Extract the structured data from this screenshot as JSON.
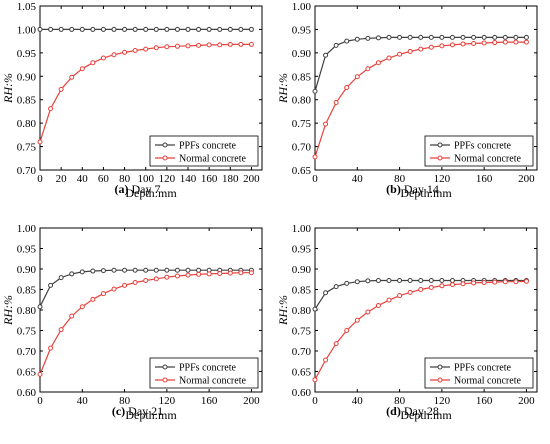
{
  "chart_data": [
    {
      "type": "line",
      "panel_tag": "(a)",
      "caption": "Day 7",
      "xlabel": "Depth:mm",
      "ylabel": "RH:%",
      "xlim": [
        0,
        210
      ],
      "ylim": [
        0.7,
        1.05
      ],
      "xticks": [
        0,
        20,
        40,
        60,
        80,
        100,
        120,
        140,
        160,
        180,
        200
      ],
      "yticks": [
        0.7,
        0.75,
        0.8,
        0.85,
        0.9,
        0.95,
        1.0,
        1.05
      ],
      "x": [
        0,
        10,
        20,
        30,
        40,
        50,
        60,
        70,
        80,
        90,
        100,
        110,
        120,
        130,
        140,
        150,
        160,
        170,
        180,
        190,
        200
      ],
      "series": [
        {
          "name": "PPFs concrete",
          "color": "#404040",
          "values": [
            1.0,
            1.0,
            1.0,
            1.0,
            1.0,
            1.0,
            1.0,
            1.0,
            1.0,
            1.0,
            1.0,
            1.0,
            1.0,
            1.0,
            1.0,
            1.0,
            1.0,
            1.0,
            1.0,
            1.0,
            1.0
          ]
        },
        {
          "name": "Normal concrete",
          "color": "#e8413c",
          "values": [
            0.76,
            0.831,
            0.872,
            0.898,
            0.916,
            0.929,
            0.939,
            0.946,
            0.951,
            0.955,
            0.958,
            0.961,
            0.963,
            0.964,
            0.965,
            0.966,
            0.967,
            0.967,
            0.968,
            0.968,
            0.968
          ]
        }
      ],
      "legend": "bottom-right"
    },
    {
      "type": "line",
      "panel_tag": "(b)",
      "caption": "Day 14",
      "xlabel": "Depth:mm",
      "ylabel": "RH:%",
      "xlim": [
        0,
        210
      ],
      "ylim": [
        0.65,
        1.0
      ],
      "xticks": [
        0,
        40,
        80,
        120,
        160,
        200
      ],
      "yticks": [
        0.65,
        0.7,
        0.75,
        0.8,
        0.85,
        0.9,
        0.95,
        1.0
      ],
      "x": [
        0,
        10,
        20,
        30,
        40,
        50,
        60,
        70,
        80,
        90,
        100,
        110,
        120,
        130,
        140,
        150,
        160,
        170,
        180,
        190,
        200
      ],
      "series": [
        {
          "name": "PPFs concrete",
          "color": "#404040",
          "values": [
            0.818,
            0.895,
            0.916,
            0.925,
            0.929,
            0.931,
            0.932,
            0.933,
            0.933,
            0.933,
            0.933,
            0.933,
            0.933,
            0.933,
            0.933,
            0.933,
            0.933,
            0.933,
            0.933,
            0.933,
            0.933
          ]
        },
        {
          "name": "Normal concrete",
          "color": "#e8413c",
          "values": [
            0.678,
            0.748,
            0.794,
            0.826,
            0.849,
            0.866,
            0.879,
            0.889,
            0.897,
            0.903,
            0.908,
            0.912,
            0.915,
            0.917,
            0.919,
            0.92,
            0.921,
            0.922,
            0.923,
            0.923,
            0.923
          ]
        }
      ],
      "legend": "bottom-right"
    },
    {
      "type": "line",
      "panel_tag": "(c)",
      "caption": "Day 21",
      "xlabel": "Depth:mm",
      "ylabel": "RH:%",
      "xlim": [
        0,
        210
      ],
      "ylim": [
        0.6,
        1.0
      ],
      "xticks": [
        0,
        40,
        80,
        120,
        160,
        200
      ],
      "yticks": [
        0.6,
        0.65,
        0.7,
        0.75,
        0.8,
        0.85,
        0.9,
        0.95,
        1.0
      ],
      "x": [
        0,
        10,
        20,
        30,
        40,
        50,
        60,
        70,
        80,
        90,
        100,
        110,
        120,
        130,
        140,
        150,
        160,
        170,
        180,
        190,
        200
      ],
      "series": [
        {
          "name": "PPFs concrete",
          "color": "#404040",
          "values": [
            0.808,
            0.86,
            0.879,
            0.888,
            0.893,
            0.895,
            0.896,
            0.897,
            0.897,
            0.897,
            0.897,
            0.897,
            0.897,
            0.897,
            0.897,
            0.897,
            0.897,
            0.897,
            0.897,
            0.897,
            0.897
          ]
        },
        {
          "name": "Normal concrete",
          "color": "#e8413c",
          "values": [
            0.643,
            0.707,
            0.752,
            0.785,
            0.808,
            0.826,
            0.84,
            0.851,
            0.86,
            0.867,
            0.872,
            0.876,
            0.88,
            0.883,
            0.885,
            0.887,
            0.888,
            0.889,
            0.89,
            0.891,
            0.891
          ]
        }
      ],
      "legend": "bottom-right"
    },
    {
      "type": "line",
      "panel_tag": "(d)",
      "caption": "Day 28",
      "xlabel": "Depth:mm",
      "ylabel": "RH:%",
      "xlim": [
        0,
        210
      ],
      "ylim": [
        0.6,
        1.0
      ],
      "xticks": [
        0,
        40,
        80,
        120,
        160,
        200
      ],
      "yticks": [
        0.6,
        0.65,
        0.7,
        0.75,
        0.8,
        0.85,
        0.9,
        0.95,
        1.0
      ],
      "x": [
        0,
        10,
        20,
        30,
        40,
        50,
        60,
        70,
        80,
        90,
        100,
        110,
        120,
        130,
        140,
        150,
        160,
        170,
        180,
        190,
        200
      ],
      "series": [
        {
          "name": "PPFs concrete",
          "color": "#404040",
          "values": [
            0.802,
            0.842,
            0.857,
            0.865,
            0.869,
            0.871,
            0.872,
            0.872,
            0.872,
            0.872,
            0.872,
            0.872,
            0.872,
            0.872,
            0.872,
            0.872,
            0.872,
            0.872,
            0.872,
            0.872,
            0.872
          ]
        },
        {
          "name": "Normal concrete",
          "color": "#e8413c",
          "values": [
            0.63,
            0.678,
            0.718,
            0.75,
            0.775,
            0.795,
            0.811,
            0.824,
            0.835,
            0.843,
            0.85,
            0.855,
            0.859,
            0.862,
            0.864,
            0.866,
            0.867,
            0.868,
            0.869,
            0.869,
            0.87
          ]
        }
      ],
      "legend": "bottom-right"
    }
  ]
}
